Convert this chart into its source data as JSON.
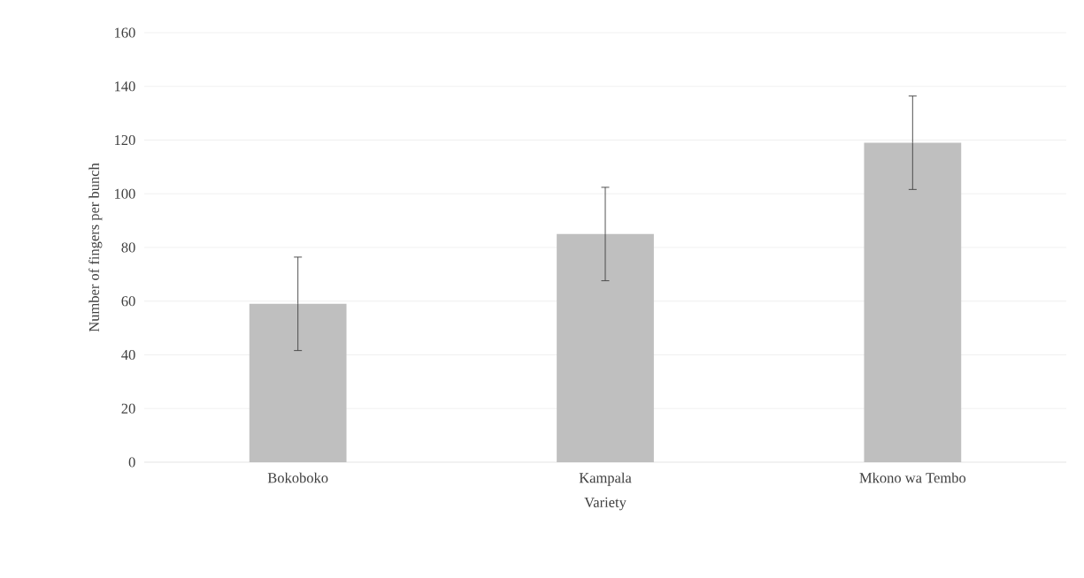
{
  "chart_data": {
    "type": "bar",
    "xlabel": "Variety",
    "ylabel": "Number of fingers per bunch",
    "categories": [
      "Bokoboko",
      "Kampala",
      "Mkono wa Tembo"
    ],
    "values": [
      59,
      85,
      119
    ],
    "errors": [
      17.4,
      17.4,
      17.4
    ],
    "color": "#bfbfbf",
    "ylim": [
      0,
      160
    ],
    "yticks": [
      0,
      20,
      40,
      60,
      80,
      100,
      120,
      140,
      160
    ],
    "grid": "y"
  }
}
